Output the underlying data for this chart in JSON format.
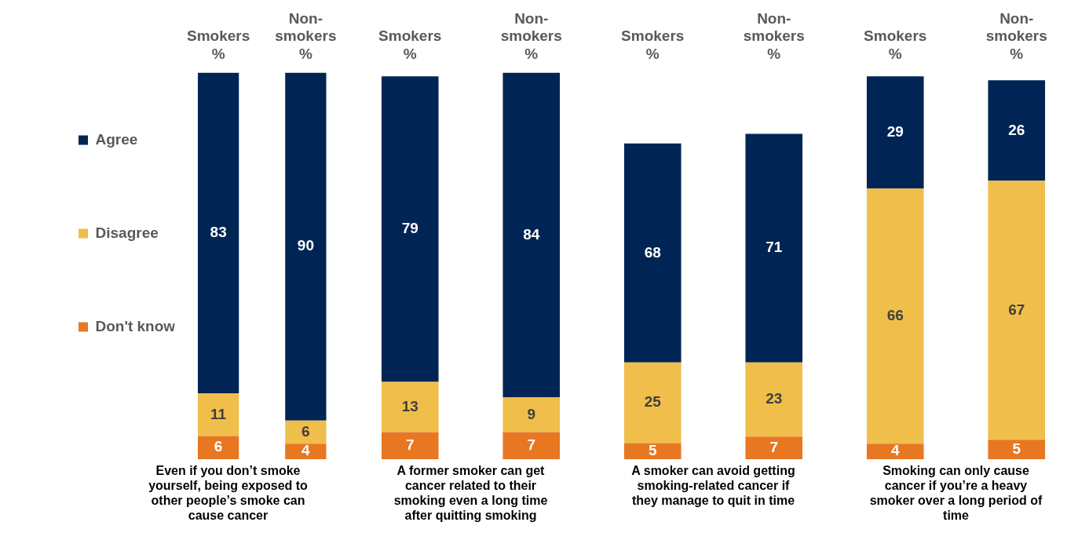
{
  "chart_data": [
    {
      "type": "bar",
      "stacked": true,
      "data_labels": true,
      "legend": "left",
      "categories": [
        "Smokers %",
        "Non-smokers %"
      ],
      "xlabel": "Even if you don’t smoke yourself, being exposed to other people’s  smoke can cause cancer",
      "series": [
        {
          "name": "Don't know",
          "color": "#e87722",
          "values": [
            6,
            4
          ]
        },
        {
          "name": "Disagree",
          "color": "#f0be4a",
          "values": [
            11,
            6
          ]
        },
        {
          "name": "Agree",
          "color": "#002554",
          "values": [
            83,
            90
          ]
        }
      ]
    },
    {
      "type": "bar",
      "stacked": true,
      "data_labels": true,
      "categories": [
        "Smokers %",
        "Non-smokers %"
      ],
      "xlabel": "A former smoker can get cancer related to their smoking even a long time after quitting smoking",
      "series": [
        {
          "color": "#e87722",
          "values": [
            7,
            7
          ]
        },
        {
          "color": "#f0be4a",
          "values": [
            13,
            9
          ]
        },
        {
          "color": "#002554",
          "values": [
            79,
            84
          ]
        }
      ]
    },
    {
      "type": "bar",
      "stacked": true,
      "data_labels": true,
      "categories": [
        "Smokers %",
        "Non-smokers %"
      ],
      "xlabel": "A smoker can avoid getting smoking-related cancer if they manage to quit in time",
      "series": [
        {
          "color": "#e87722",
          "values": [
            5,
            7
          ]
        },
        {
          "color": "#f0be4a",
          "values": [
            25,
            23
          ]
        },
        {
          "color": "#002554",
          "values": [
            68,
            71
          ]
        }
      ]
    },
    {
      "type": "bar",
      "stacked": true,
      "data_labels": true,
      "categories": [
        "Smokers %",
        "Non-smokers %"
      ],
      "xlabel": "Smoking can only cause cancer if you’re a heavy smoker over a long period of time",
      "series": [
        {
          "color": "#e87722",
          "values": [
            4,
            5
          ]
        },
        {
          "color": "#f0be4a",
          "values": [
            66,
            67
          ]
        },
        {
          "color": "#002554",
          "values": [
            29,
            26
          ]
        }
      ]
    }
  ]
}
